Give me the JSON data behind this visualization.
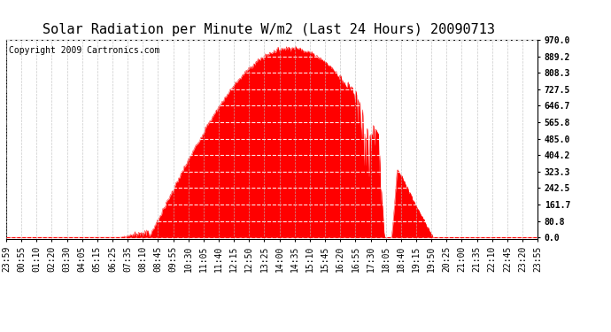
{
  "title": "Solar Radiation per Minute W/m2 (Last 24 Hours) 20090713",
  "copyright": "Copyright 2009 Cartronics.com",
  "fill_color": "#FF0000",
  "line_color": "#FF0000",
  "background_color": "#FFFFFF",
  "plot_bg_color": "#FFFFFF",
  "dashed_line_color": "#FF0000",
  "ylim": [
    0.0,
    970.0
  ],
  "yticks": [
    0.0,
    80.8,
    161.7,
    242.5,
    323.3,
    404.2,
    485.0,
    565.8,
    646.7,
    727.5,
    808.3,
    889.2,
    970.0
  ],
  "xtick_labels": [
    "23:59",
    "00:55",
    "01:10",
    "02:20",
    "03:30",
    "04:05",
    "05:15",
    "06:25",
    "07:35",
    "08:10",
    "08:45",
    "09:55",
    "10:30",
    "11:05",
    "11:40",
    "12:15",
    "12:50",
    "13:25",
    "14:00",
    "14:35",
    "15:10",
    "15:45",
    "16:20",
    "16:55",
    "17:30",
    "18:05",
    "18:40",
    "19:15",
    "19:50",
    "20:25",
    "21:00",
    "21:35",
    "22:10",
    "22:45",
    "23:20",
    "23:55"
  ],
  "title_fontsize": 11,
  "tick_fontsize": 7,
  "copyright_fontsize": 7
}
